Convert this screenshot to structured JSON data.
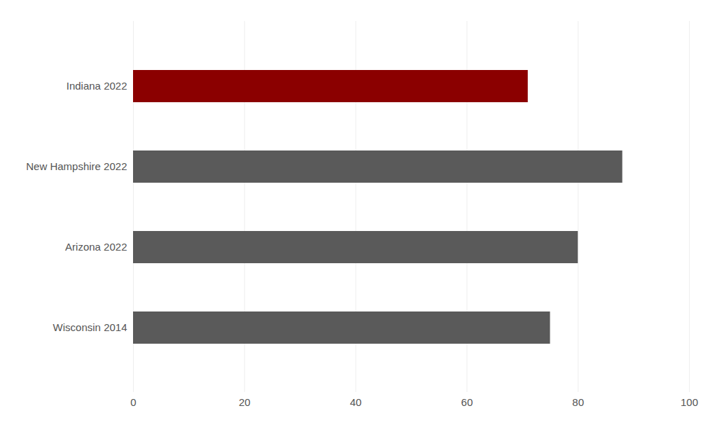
{
  "chart_data": {
    "type": "bar",
    "orientation": "horizontal",
    "categories": [
      "Indiana 2022",
      "New Hampshire 2022",
      "Arizona 2022",
      "Wisconsin 2014"
    ],
    "values": [
      71,
      88,
      80,
      75
    ],
    "colors": [
      "#8B0000",
      "#5a5a5a",
      "#5a5a5a",
      "#5a5a5a"
    ],
    "xlim": [
      0,
      100
    ],
    "xticks": [
      0,
      20,
      40,
      60,
      80,
      100
    ],
    "grid": true
  }
}
